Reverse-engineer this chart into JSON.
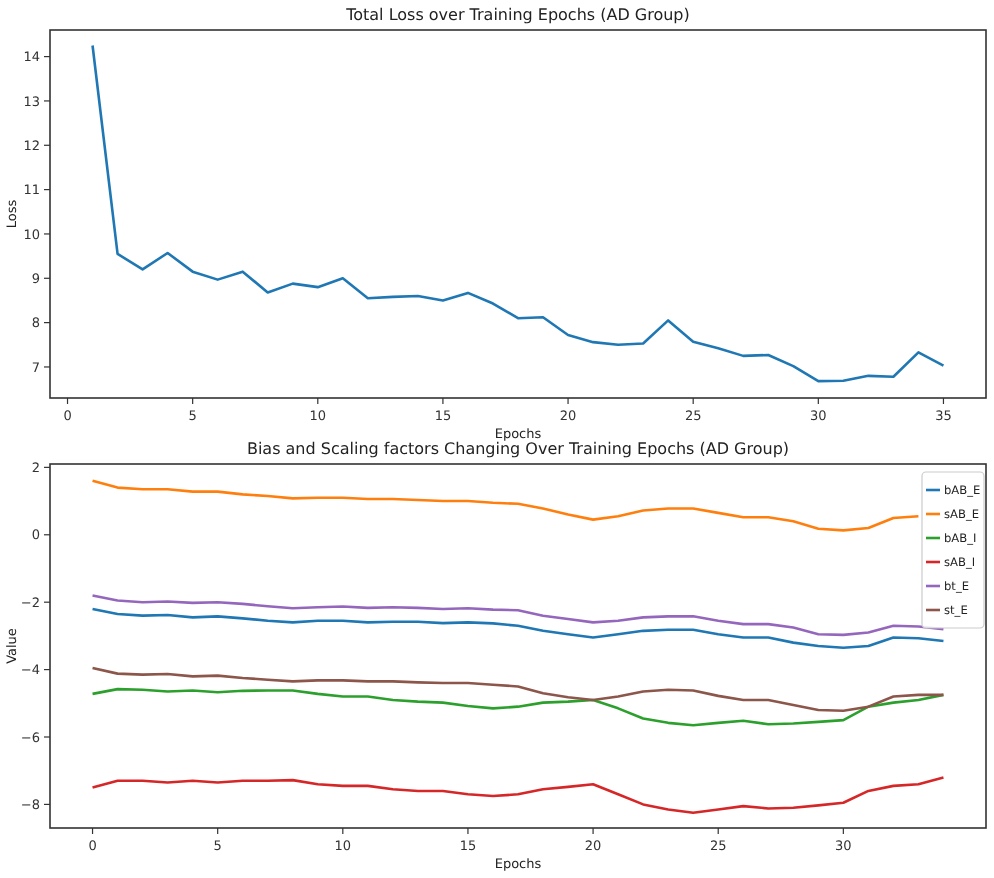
{
  "chart_data": [
    {
      "type": "line",
      "title": "Total Loss over Training Epochs (AD Group)",
      "xlabel": "Epochs",
      "ylabel": "Loss",
      "x": [
        1,
        2,
        3,
        4,
        5,
        6,
        7,
        8,
        9,
        10,
        11,
        12,
        13,
        14,
        15,
        16,
        17,
        18,
        19,
        20,
        21,
        22,
        23,
        24,
        25,
        26,
        27,
        28,
        29,
        30,
        31,
        32,
        33,
        34,
        35
      ],
      "series": [
        {
          "color": "#1f77b4",
          "values": [
            14.25,
            9.55,
            9.2,
            9.57,
            9.15,
            8.97,
            9.15,
            8.68,
            8.88,
            8.8,
            9.0,
            8.55,
            8.58,
            8.6,
            8.5,
            8.67,
            8.43,
            8.1,
            8.12,
            7.72,
            7.56,
            7.5,
            7.53,
            8.05,
            7.57,
            7.42,
            7.25,
            7.27,
            7.02,
            6.68,
            6.69,
            6.8,
            6.78,
            7.33,
            7.03
          ]
        }
      ],
      "xlim": [
        -0.7,
        36.7
      ],
      "ylim": [
        6.3,
        14.6
      ],
      "xticks": [
        0,
        5,
        10,
        15,
        20,
        25,
        30,
        35
      ],
      "yticks": [
        7,
        8,
        9,
        10,
        11,
        12,
        13,
        14
      ],
      "grid": false,
      "legend": false
    },
    {
      "type": "line",
      "title": "Bias and Scaling factors Changing Over Training Epochs (AD Group)",
      "xlabel": "Epochs",
      "ylabel": "Value",
      "x": [
        0,
        1,
        2,
        3,
        4,
        5,
        6,
        7,
        8,
        9,
        10,
        11,
        12,
        13,
        14,
        15,
        16,
        17,
        18,
        19,
        20,
        21,
        22,
        23,
        24,
        25,
        26,
        27,
        28,
        29,
        30,
        31,
        32,
        33,
        34
      ],
      "series": [
        {
          "name": "bAB_E",
          "color": "#1f77b4",
          "values": [
            -2.2,
            -2.35,
            -2.4,
            -2.38,
            -2.45,
            -2.42,
            -2.48,
            -2.55,
            -2.6,
            -2.55,
            -2.55,
            -2.6,
            -2.58,
            -2.58,
            -2.62,
            -2.6,
            -2.63,
            -2.7,
            -2.85,
            -2.95,
            -3.05,
            -2.95,
            -2.85,
            -2.82,
            -2.82,
            -2.95,
            -3.05,
            -3.05,
            -3.2,
            -3.3,
            -3.35,
            -3.3,
            -3.05,
            -3.07,
            -3.15
          ]
        },
        {
          "name": "sAB_E",
          "color": "#ff7f0e",
          "values": [
            1.6,
            1.4,
            1.35,
            1.35,
            1.28,
            1.28,
            1.2,
            1.15,
            1.08,
            1.1,
            1.1,
            1.06,
            1.06,
            1.03,
            1.0,
            1.0,
            0.95,
            0.92,
            0.78,
            0.6,
            0.45,
            0.55,
            0.72,
            0.78,
            0.78,
            0.65,
            0.52,
            0.52,
            0.4,
            0.18,
            0.13,
            0.2,
            0.5,
            0.55,
            null
          ]
        },
        {
          "name": "bAB_I",
          "color": "#2ca02c",
          "values": [
            -4.72,
            -4.58,
            -4.6,
            -4.65,
            -4.62,
            -4.67,
            -4.63,
            -4.62,
            -4.62,
            -4.72,
            -4.8,
            -4.8,
            -4.9,
            -4.95,
            -4.98,
            -5.08,
            -5.15,
            -5.1,
            -4.98,
            -4.95,
            -4.9,
            -5.15,
            -5.45,
            -5.58,
            -5.65,
            -5.58,
            -5.52,
            -5.62,
            -5.6,
            -5.55,
            -5.5,
            -5.1,
            -4.98,
            -4.9,
            -4.75
          ]
        },
        {
          "name": "sAB_I",
          "color": "#d62728",
          "values": [
            -7.5,
            -7.3,
            -7.3,
            -7.35,
            -7.3,
            -7.35,
            -7.3,
            -7.3,
            -7.28,
            -7.4,
            -7.45,
            -7.45,
            -7.55,
            -7.6,
            -7.6,
            -7.7,
            -7.75,
            -7.7,
            -7.55,
            -7.48,
            -7.4,
            -7.7,
            -8.0,
            -8.15,
            -8.25,
            -8.15,
            -8.05,
            -8.12,
            -8.1,
            -8.03,
            -7.95,
            -7.6,
            -7.45,
            -7.4,
            -7.2
          ]
        },
        {
          "name": "bt_E",
          "color": "#9467bd",
          "values": [
            -1.8,
            -1.95,
            -2.0,
            -1.98,
            -2.02,
            -2.0,
            -2.05,
            -2.12,
            -2.18,
            -2.15,
            -2.13,
            -2.17,
            -2.15,
            -2.17,
            -2.2,
            -2.18,
            -2.22,
            -2.24,
            -2.4,
            -2.5,
            -2.6,
            -2.55,
            -2.45,
            -2.42,
            -2.42,
            -2.55,
            -2.65,
            -2.65,
            -2.75,
            -2.95,
            -2.97,
            -2.9,
            -2.7,
            -2.72,
            -2.8
          ]
        },
        {
          "name": "st_E",
          "color": "#8c564b",
          "values": [
            -3.95,
            -4.12,
            -4.15,
            -4.13,
            -4.2,
            -4.18,
            -4.25,
            -4.3,
            -4.35,
            -4.32,
            -4.32,
            -4.35,
            -4.35,
            -4.38,
            -4.4,
            -4.4,
            -4.45,
            -4.5,
            -4.7,
            -4.82,
            -4.9,
            -4.8,
            -4.65,
            -4.6,
            -4.62,
            -4.78,
            -4.9,
            -4.9,
            -5.05,
            -5.2,
            -5.22,
            -5.1,
            -4.8,
            -4.75,
            -4.75
          ]
        }
      ],
      "xlim": [
        -1.7,
        35.7
      ],
      "ylim": [
        -8.7,
        2.1
      ],
      "xticks": [
        0,
        5,
        10,
        15,
        20,
        25,
        30
      ],
      "yticks": [
        -8,
        -6,
        -4,
        -2,
        0,
        2
      ],
      "grid": false,
      "legend": "top right"
    }
  ]
}
